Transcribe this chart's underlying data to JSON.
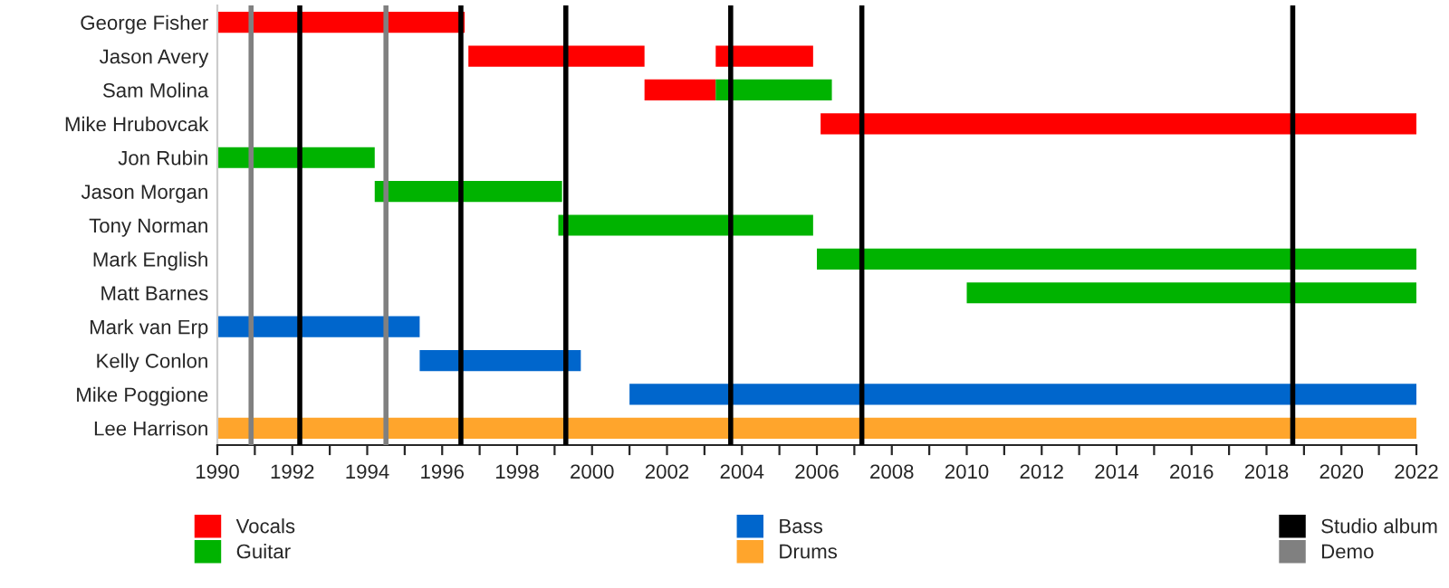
{
  "chart_data": {
    "type": "bar",
    "orientation": "horizontal",
    "categories": [
      "George Fisher",
      "Jason Avery",
      "Sam Molina",
      "Mike Hrubovcak",
      "Jon Rubin",
      "Jason Morgan",
      "Tony Norman",
      "Mark English",
      "Matt Barnes",
      "Mark van Erp",
      "Kelly Conlon",
      "Mike Poggione",
      "Lee Harrison"
    ],
    "series": [
      {
        "name": "Vocals",
        "color": "#ff0000",
        "base": [
          1990,
          1996.7,
          2001.4,
          2006.1,
          null,
          null,
          null,
          null,
          null,
          null,
          null,
          null,
          null
        ],
        "values": [
          6.6,
          4.7,
          1.9,
          15.9,
          null,
          null,
          null,
          null,
          null,
          null,
          null,
          null,
          null
        ]
      },
      {
        "color": "#ff0000",
        "base": [
          null,
          2003.3,
          null,
          null,
          null,
          null,
          null,
          null,
          null,
          null,
          null,
          null,
          null
        ],
        "values": [
          null,
          2.6,
          null,
          null,
          null,
          null,
          null,
          null,
          null,
          null,
          null,
          null,
          null
        ]
      },
      {
        "name": "Guitar",
        "color": "#00b300",
        "base": [
          null,
          null,
          2003.3,
          null,
          1990,
          1994.2,
          1999.1,
          2006.0,
          2010.0,
          null,
          null,
          null,
          null
        ],
        "values": [
          null,
          null,
          3.1,
          null,
          4.2,
          5.0,
          6.8,
          16.0,
          12.0,
          null,
          null,
          null,
          null
        ]
      },
      {
        "name": "Bass",
        "color": "#0066cc",
        "base": [
          null,
          null,
          null,
          null,
          null,
          null,
          null,
          null,
          null,
          1990,
          1995.4,
          2001.0,
          null
        ],
        "values": [
          null,
          null,
          null,
          null,
          null,
          null,
          null,
          null,
          null,
          5.4,
          4.3,
          21.0,
          null
        ]
      },
      {
        "name": "Drums",
        "color": "#ffa52c",
        "base": [
          null,
          null,
          null,
          null,
          null,
          null,
          null,
          null,
          null,
          null,
          null,
          null,
          1990
        ],
        "values": [
          null,
          null,
          null,
          null,
          null,
          null,
          null,
          null,
          null,
          null,
          null,
          null,
          32
        ]
      }
    ],
    "ref_lines": [
      {
        "axis": "x",
        "value": 1992.2,
        "label": "Studio album",
        "color": "#000000"
      },
      {
        "axis": "x",
        "value": 1990.9,
        "label": "Demo",
        "color": "#808080"
      },
      {
        "axis": "x",
        "value": 1994.5,
        "color": "#808080"
      },
      {
        "axis": "x",
        "value": 1996.5,
        "color": "#000000"
      },
      {
        "axis": "x",
        "value": 1999.3,
        "color": "#000000"
      },
      {
        "axis": "x",
        "value": 2003.7,
        "color": "#000000"
      },
      {
        "axis": "x",
        "value": 2007.2,
        "color": "#000000"
      },
      {
        "axis": "x",
        "value": 2018.7,
        "color": "#000000"
      }
    ],
    "xlim": [
      1990,
      2022
    ],
    "xticks": [
      1990,
      {
        "value": 1991,
        "label": null
      },
      1992,
      {
        "value": 1993,
        "label": null
      },
      1994,
      {
        "value": 1995,
        "label": null
      },
      1996,
      {
        "value": 1997,
        "label": null
      },
      1998,
      {
        "value": 1999,
        "label": null
      },
      2000,
      {
        "value": 2001,
        "label": null
      },
      2002,
      {
        "value": 2003,
        "label": null
      },
      2004,
      {
        "value": 2005,
        "label": null
      },
      2006,
      {
        "value": 2007,
        "label": null
      },
      2008,
      {
        "value": 2009,
        "label": null
      },
      2010,
      {
        "value": 2011,
        "label": null
      },
      2012,
      {
        "value": 2013,
        "label": null
      },
      2014,
      {
        "value": 2015,
        "label": null
      },
      2016,
      {
        "value": 2017,
        "label": null
      },
      2018,
      {
        "value": 2019,
        "label": null
      },
      2020,
      {
        "value": 2021,
        "label": null
      },
      2022
    ],
    "legend": "bottom"
  }
}
